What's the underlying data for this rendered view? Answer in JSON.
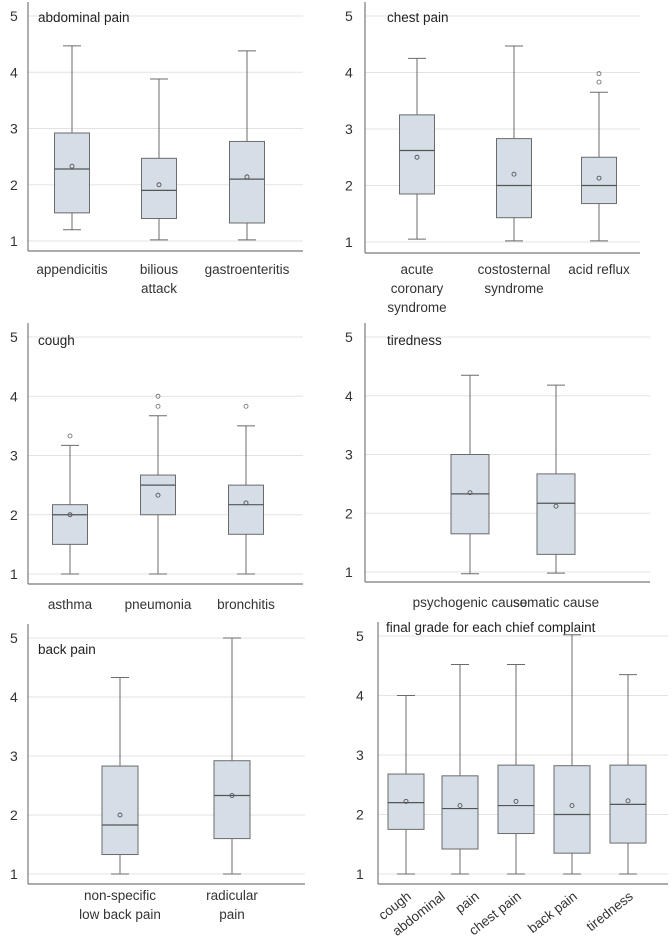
{
  "chart_data": [
    {
      "type": "box",
      "title": "abdominal pain",
      "ylim": [
        1,
        5
      ],
      "yticks": [
        1,
        2,
        3,
        4,
        5
      ],
      "grid": true,
      "categories": [
        [
          "appendicitis"
        ],
        [
          "bilious",
          "attack"
        ],
        [
          "gastroenteritis"
        ]
      ],
      "boxes": [
        {
          "min": 1.2,
          "q1": 1.5,
          "median": 2.28,
          "q3": 2.92,
          "max": 4.47,
          "mean": 2.33,
          "outliers": []
        },
        {
          "min": 1.02,
          "q1": 1.4,
          "median": 1.9,
          "q3": 2.47,
          "max": 3.88,
          "mean": 2.0,
          "outliers": []
        },
        {
          "min": 1.02,
          "q1": 1.32,
          "median": 2.1,
          "q3": 2.77,
          "max": 4.38,
          "mean": 2.14,
          "outliers": []
        }
      ]
    },
    {
      "type": "box",
      "title": "chest pain",
      "ylim": [
        1,
        5
      ],
      "yticks": [
        1,
        2,
        3,
        4,
        5
      ],
      "grid": true,
      "categories": [
        [
          "acute",
          "coronary",
          "syndrome"
        ],
        [
          "costosternal",
          "syndrome"
        ],
        [
          "acid reflux"
        ]
      ],
      "boxes": [
        {
          "min": 1.05,
          "q1": 1.85,
          "median": 2.62,
          "q3": 3.25,
          "max": 4.25,
          "mean": 2.5,
          "outliers": []
        },
        {
          "min": 1.02,
          "q1": 1.43,
          "median": 2.0,
          "q3": 2.83,
          "max": 4.47,
          "mean": 2.2,
          "outliers": []
        },
        {
          "min": 1.02,
          "q1": 1.68,
          "median": 2.0,
          "q3": 2.5,
          "max": 3.65,
          "mean": 2.13,
          "outliers": [
            3.83,
            3.98
          ]
        }
      ]
    },
    {
      "type": "box",
      "title": "cough",
      "ylim": [
        1,
        5
      ],
      "yticks": [
        1,
        2,
        3,
        4,
        5
      ],
      "grid": true,
      "categories": [
        [
          "asthma"
        ],
        [
          "pneumonia"
        ],
        [
          "bronchitis"
        ]
      ],
      "boxes": [
        {
          "min": 1.0,
          "q1": 1.5,
          "median": 2.0,
          "q3": 2.17,
          "max": 3.17,
          "mean": 2.0,
          "outliers": [
            3.33
          ]
        },
        {
          "min": 1.0,
          "q1": 2.0,
          "median": 2.5,
          "q3": 2.67,
          "max": 3.67,
          "mean": 2.33,
          "outliers": [
            3.83,
            4.0
          ]
        },
        {
          "min": 1.0,
          "q1": 1.67,
          "median": 2.17,
          "q3": 2.5,
          "max": 3.5,
          "mean": 2.2,
          "outliers": [
            3.83
          ]
        }
      ]
    },
    {
      "type": "box",
      "title": "tiredness",
      "ylim": [
        1,
        5
      ],
      "yticks": [
        1,
        2,
        3,
        4,
        5
      ],
      "grid": true,
      "categories": [
        [
          "psychogenic cause"
        ],
        [
          "somatic cause"
        ]
      ],
      "boxes": [
        {
          "min": 0.97,
          "q1": 1.65,
          "median": 2.33,
          "q3": 3.0,
          "max": 4.35,
          "mean": 2.35,
          "outliers": []
        },
        {
          "min": 0.98,
          "q1": 1.3,
          "median": 2.17,
          "q3": 2.67,
          "max": 4.18,
          "mean": 2.12,
          "outliers": []
        }
      ]
    },
    {
      "type": "box",
      "title": "back pain",
      "ylim": [
        1,
        5
      ],
      "yticks": [
        1,
        2,
        3,
        4,
        5
      ],
      "grid": true,
      "categories": [
        [
          "non-specific",
          "low back pain"
        ],
        [
          "radicular",
          "pain"
        ]
      ],
      "boxes": [
        {
          "min": 1.0,
          "q1": 1.33,
          "median": 1.83,
          "q3": 2.83,
          "max": 4.33,
          "mean": 2.0,
          "outliers": []
        },
        {
          "min": 1.0,
          "q1": 1.6,
          "median": 2.33,
          "q3": 2.92,
          "max": 5.0,
          "mean": 2.33,
          "outliers": []
        }
      ]
    },
    {
      "type": "box",
      "title": "final grade for each chief complaint",
      "ylim": [
        1,
        5
      ],
      "yticks": [
        1,
        2,
        3,
        4,
        5
      ],
      "grid": true,
      "categories": [
        [
          "cough"
        ],
        [
          "abdominal",
          "pain"
        ],
        [
          "chest pain"
        ],
        [
          "back pain"
        ],
        [
          "tiredness"
        ]
      ],
      "boxes": [
        {
          "min": 1.0,
          "q1": 1.75,
          "median": 2.2,
          "q3": 2.68,
          "max": 4.0,
          "mean": 2.22,
          "outliers": []
        },
        {
          "min": 1.0,
          "q1": 1.42,
          "median": 2.1,
          "q3": 2.65,
          "max": 4.52,
          "mean": 2.15,
          "outliers": []
        },
        {
          "min": 1.0,
          "q1": 1.68,
          "median": 2.15,
          "q3": 2.83,
          "max": 4.52,
          "mean": 2.22,
          "outliers": []
        },
        {
          "min": 1.0,
          "q1": 1.35,
          "median": 2.0,
          "q3": 2.82,
          "max": 5.02,
          "mean": 2.15,
          "outliers": []
        },
        {
          "min": 1.0,
          "q1": 1.52,
          "median": 2.17,
          "q3": 2.83,
          "max": 4.35,
          "mean": 2.23,
          "outliers": []
        }
      ]
    }
  ],
  "colors": {
    "box_fill": "#d5dde6",
    "box_stroke": "#6b6b6b",
    "grid": "#e3e3e3",
    "axis": "#7a7a7a"
  }
}
